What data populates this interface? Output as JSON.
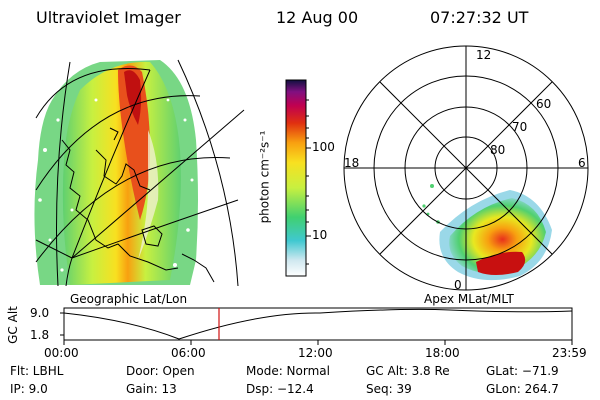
{
  "header": {
    "title": "Ultraviolet Imager",
    "date": "12 Aug 00",
    "time": "07:27:32 UT"
  },
  "geo_panel": {
    "label": "Geographic Lat/Lon"
  },
  "mag_panel": {
    "label": "Apex MLat/MLT",
    "mlt_labels": [
      "12",
      "18",
      "6",
      "0"
    ],
    "lat_labels": [
      "60",
      "70",
      "80"
    ]
  },
  "colorbar": {
    "unit_label": "photon cm⁻²s⁻¹",
    "ticks": [
      "100",
      "10"
    ]
  },
  "altitude_plot": {
    "ylabel": "GC Alt",
    "yticks": [
      "9.0",
      "1.8"
    ],
    "xticks": [
      "00:00",
      "06:00",
      "12:00",
      "18:00",
      "23:59"
    ]
  },
  "info": {
    "flt": "Flt: LBHL",
    "ip": "IP:  9.0",
    "door": "Door: Open",
    "gain": "Gain: 13",
    "mode": "Mode: Normal",
    "dsp": "Dsp:  −12.4",
    "gcalt": "GC Alt: 3.8 Re",
    "seq": "Seq: 39",
    "glat": "GLat: −71.9",
    "glon": "GLon: 264.7"
  },
  "colors": {
    "accent_marker": "#d01010"
  }
}
